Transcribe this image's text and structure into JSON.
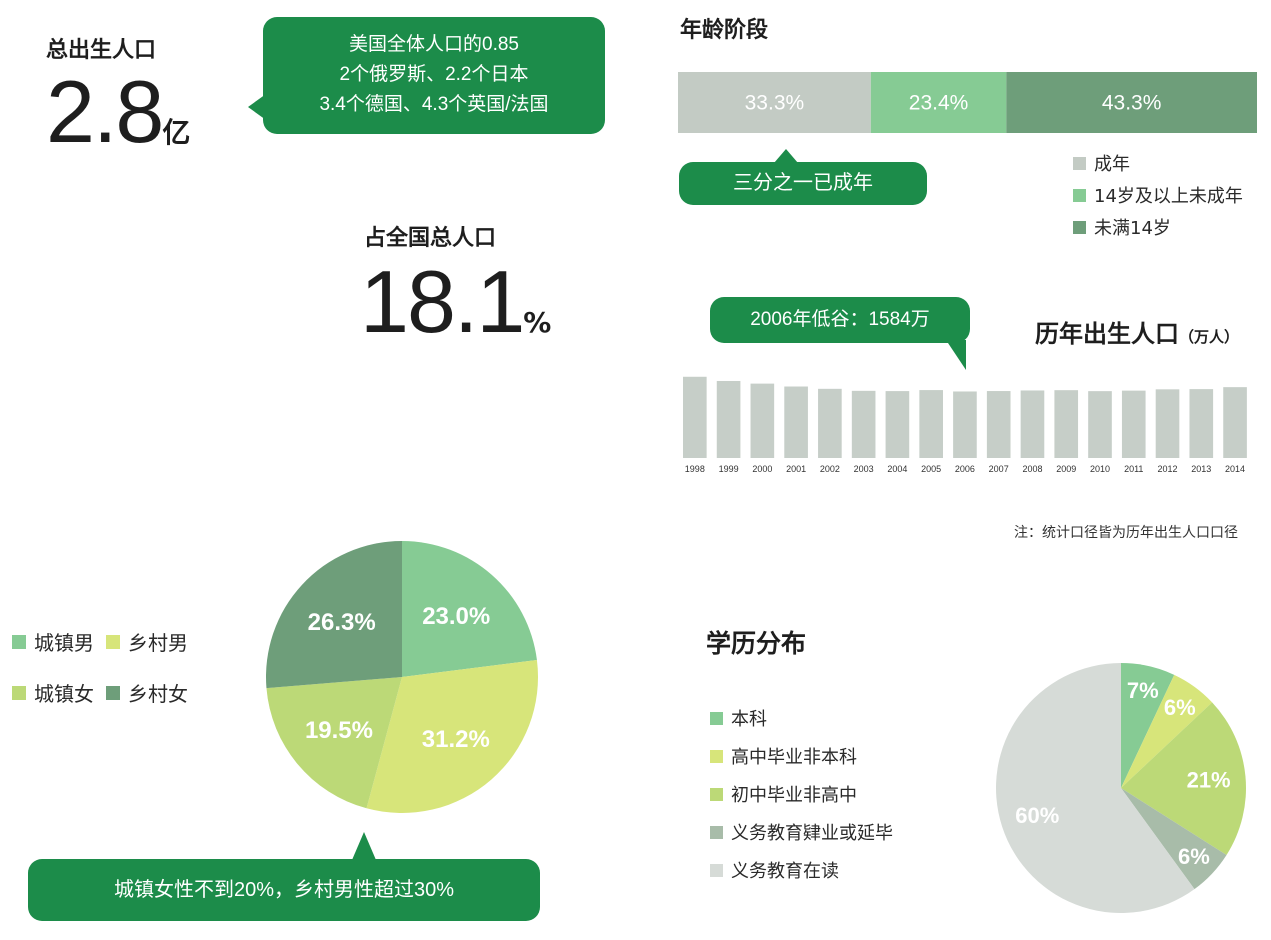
{
  "total_birth": {
    "label": "总出生人口",
    "value": "2.8",
    "unit": "亿",
    "bubble_lines": [
      "美国全体人口的0.85",
      "2个俄罗斯、2.2个日本",
      "3.4个德国、4.3个英国/法国"
    ]
  },
  "share": {
    "label": "占全国总人口",
    "value": "18.1",
    "unit": "%"
  },
  "age_stage": {
    "title": "年龄阶段",
    "bubble": "三分之一已成年",
    "colors": [
      "#c3cbc4",
      "#86cb94",
      "#6e9e7a"
    ]
  },
  "births_by_year": {
    "title": "历年出生人口",
    "unit_label": "（万人）",
    "bubble": "2006年低谷：1584万",
    "note": "注：统计口径皆为历年出生人口口径",
    "bar_color": "#c6cec8"
  },
  "gender_area": {
    "bubble": "城镇女性不到20%，乡村男性超过30%"
  },
  "education": {
    "title": "学历分布"
  },
  "chart_data": [
    {
      "type": "bar",
      "orientation": "horizontal-stacked",
      "title": "年龄阶段",
      "series": [
        {
          "name": "成年",
          "value": 33.3,
          "label": "33.3%"
        },
        {
          "name": "14岁及以上未成年",
          "value": 23.4,
          "label": "23.4%"
        },
        {
          "name": "未满14岁",
          "value": 43.3,
          "label": "43.3%"
        }
      ],
      "legend_position": "bottom-right"
    },
    {
      "type": "bar",
      "title": "历年出生人口",
      "ylabel": "（万人）",
      "categories": [
        "1998",
        "1999",
        "2000",
        "2001",
        "2002",
        "2003",
        "2004",
        "2005",
        "2006",
        "2007",
        "2008",
        "2009",
        "2010",
        "2011",
        "2012",
        "2013",
        "2014"
      ],
      "values": [
        1934,
        1834,
        1771,
        1702,
        1647,
        1599,
        1593,
        1617,
        1584,
        1594,
        1608,
        1615,
        1592,
        1604,
        1635,
        1640,
        1687
      ],
      "ylim": [
        0,
        2000
      ]
    },
    {
      "type": "pie",
      "slices": [
        {
          "name": "城镇男",
          "value": 23.0,
          "label": "23.0%",
          "color": "#86cb94"
        },
        {
          "name": "乡村男",
          "value": 31.2,
          "label": "31.2%",
          "color": "#d7e57a"
        },
        {
          "name": "城镇女",
          "value": 19.5,
          "label": "19.5%",
          "color": "#bcd977"
        },
        {
          "name": "乡村女",
          "value": 26.3,
          "label": "26.3%",
          "color": "#6e9e7a"
        }
      ],
      "legend_position": "left"
    },
    {
      "type": "pie",
      "title": "学历分布",
      "slices": [
        {
          "name": "本科",
          "value": 7,
          "label": "7%",
          "color": "#86cb94"
        },
        {
          "name": "高中毕业非本科",
          "value": 6,
          "label": "6%",
          "color": "#d7e57a"
        },
        {
          "name": "初中毕业非高中",
          "value": 21,
          "label": "21%",
          "color": "#bcd977"
        },
        {
          "name": "义务教育肄业或延毕",
          "value": 6,
          "label": "6%",
          "color": "#a8bca9"
        },
        {
          "name": "义务教育在读",
          "value": 60,
          "label": "60%",
          "color": "#d6dbd7"
        }
      ],
      "legend_position": "left"
    }
  ]
}
